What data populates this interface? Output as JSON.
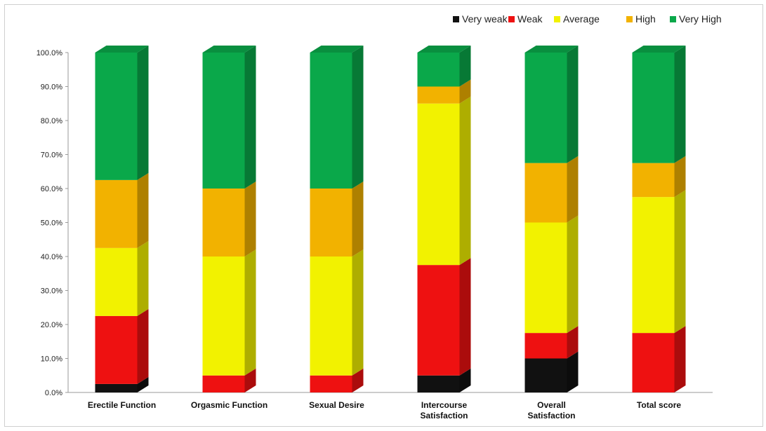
{
  "chart_data": {
    "type": "bar",
    "stacked": true,
    "percent": true,
    "categories": [
      [
        "Erectile Function"
      ],
      [
        "Orgasmic Function"
      ],
      [
        "Sexual Desire"
      ],
      [
        "Intercourse",
        "Satisfaction"
      ],
      [
        "Overall",
        "Satisfaction"
      ],
      [
        "Total score"
      ]
    ],
    "series": [
      {
        "name": "Very weak",
        "color": "#111111",
        "values": [
          2.5,
          0,
          0,
          5,
          10,
          0
        ]
      },
      {
        "name": "Weak",
        "color": "#ee1111",
        "values": [
          20,
          5,
          5,
          32.5,
          7.5,
          17.5
        ]
      },
      {
        "name": "Average",
        "color": "#f2f200",
        "values": [
          20,
          35,
          35,
          47.5,
          32.5,
          40
        ]
      },
      {
        "name": "High",
        "color": "#f2b200",
        "values": [
          20,
          20,
          20,
          5,
          17.5,
          10
        ]
      },
      {
        "name": "Very High",
        "color": "#0aa84a",
        "values": [
          37.5,
          40,
          40,
          10,
          32.5,
          32.5
        ]
      }
    ],
    "yticks": [
      "0.0%",
      "10.0%",
      "20.0%",
      "30.0%",
      "40.0%",
      "50.0%",
      "60.0%",
      "70.0%",
      "80.0%",
      "90.0%",
      "100.0%"
    ],
    "ylim": [
      0,
      100
    ],
    "legend_position": "top-right",
    "grid": false
  }
}
